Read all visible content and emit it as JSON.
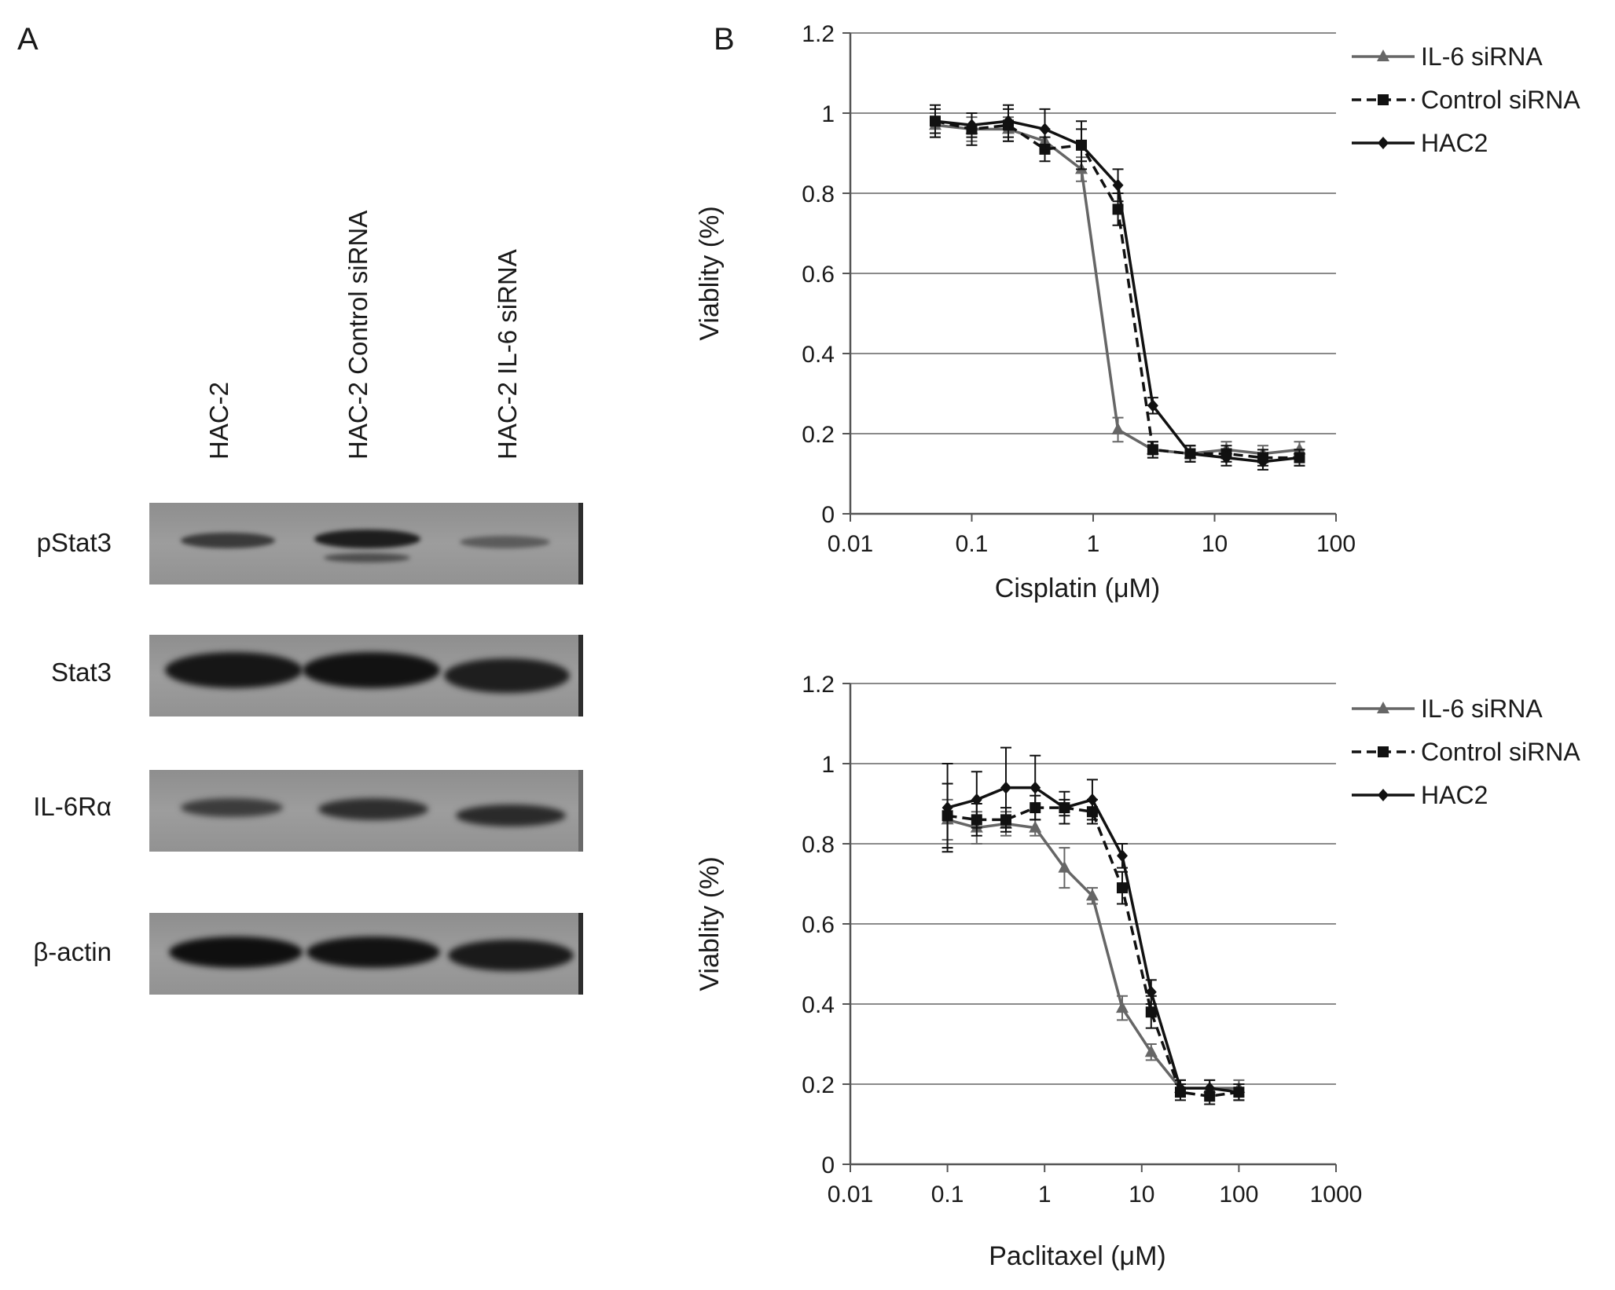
{
  "panels": {
    "a_label": "A",
    "b_label": "B"
  },
  "western_blot": {
    "lanes": [
      "HAC-2",
      "HAC-2 Control siRNA",
      "HAC-2 IL-6 siRNA"
    ],
    "rows": [
      {
        "label": "pStat3"
      },
      {
        "label": "Stat3"
      },
      {
        "label": "IL-6Rα"
      },
      {
        "label": "β-actin"
      }
    ]
  },
  "chart_data": [
    {
      "type": "line",
      "xlabel": "Cisplatin (μM)",
      "ylabel": "Viablity (%)",
      "x_scale": "log",
      "xlim": [
        0.01,
        100
      ],
      "ylim": [
        0,
        1.2
      ],
      "x_ticks": [
        "0.01",
        "0.1",
        "1",
        "10",
        "100"
      ],
      "y_ticks": [
        "0",
        "0.2",
        "0.4",
        "0.6",
        "0.8",
        "1",
        "1.2"
      ],
      "grid": "horizontal",
      "legend_position": "top-right",
      "x": [
        0.05,
        0.1,
        0.2,
        0.4,
        0.8,
        1.6,
        3.1,
        6.3,
        12.5,
        25,
        50
      ],
      "series": [
        {
          "name": "IL-6 siRNA",
          "marker": "triangle",
          "color": "#666666",
          "dash": "solid",
          "values": [
            0.97,
            0.96,
            0.96,
            0.93,
            0.86,
            0.21,
            0.16,
            0.15,
            0.16,
            0.15,
            0.16
          ],
          "errors": [
            0.03,
            0.03,
            0.03,
            0.03,
            0.03,
            0.03,
            0.02,
            0.02,
            0.02,
            0.02,
            0.02
          ]
        },
        {
          "name": "Control siRNA",
          "marker": "square",
          "color": "#111111",
          "dash": "dashed",
          "values": [
            0.98,
            0.96,
            0.97,
            0.91,
            0.92,
            0.76,
            0.16,
            0.15,
            0.15,
            0.14,
            0.14
          ],
          "errors": [
            0.03,
            0.04,
            0.04,
            0.03,
            0.04,
            0.04,
            0.02,
            0.02,
            0.02,
            0.02,
            0.02
          ]
        },
        {
          "name": "HAC2",
          "marker": "diamond",
          "color": "#111111",
          "dash": "solid",
          "values": [
            0.98,
            0.97,
            0.98,
            0.96,
            0.92,
            0.82,
            0.27,
            0.15,
            0.14,
            0.13,
            0.14
          ],
          "errors": [
            0.04,
            0.03,
            0.04,
            0.05,
            0.06,
            0.04,
            0.02,
            0.02,
            0.02,
            0.02,
            0.02
          ]
        }
      ]
    },
    {
      "type": "line",
      "xlabel": "Paclitaxel (μM)",
      "ylabel": "Viablity (%)",
      "x_scale": "log",
      "xlim": [
        0.01,
        1000
      ],
      "ylim": [
        0,
        1.2
      ],
      "x_ticks": [
        "0.01",
        "0.1",
        "1",
        "10",
        "100",
        "1000"
      ],
      "y_ticks": [
        "0",
        "0.2",
        "0.4",
        "0.6",
        "0.8",
        "1",
        "1.2"
      ],
      "grid": "horizontal",
      "legend_position": "top-right",
      "x": [
        0.1,
        0.2,
        0.4,
        0.8,
        1.6,
        3.1,
        6.3,
        12.5,
        25,
        50,
        100
      ],
      "series": [
        {
          "name": "IL-6 siRNA",
          "marker": "triangle",
          "color": "#666666",
          "dash": "solid",
          "values": [
            0.86,
            0.84,
            0.85,
            0.84,
            0.74,
            0.67,
            0.39,
            0.28,
            0.19,
            0.19,
            0.19
          ],
          "errors": [
            0.05,
            0.04,
            0.03,
            0.02,
            0.05,
            0.02,
            0.03,
            0.02,
            0.02,
            0.02,
            0.02
          ]
        },
        {
          "name": "Control siRNA",
          "marker": "square",
          "color": "#111111",
          "dash": "dashed",
          "values": [
            0.87,
            0.86,
            0.86,
            0.89,
            0.89,
            0.88,
            0.69,
            0.38,
            0.18,
            0.17,
            0.18
          ],
          "errors": [
            0.08,
            0.04,
            0.03,
            0.03,
            0.02,
            0.03,
            0.04,
            0.04,
            0.02,
            0.02,
            0.02
          ]
        },
        {
          "name": "HAC2",
          "marker": "diamond",
          "color": "#111111",
          "dash": "solid",
          "values": [
            0.89,
            0.91,
            0.94,
            0.94,
            0.89,
            0.91,
            0.77,
            0.43,
            0.19,
            0.19,
            0.18
          ],
          "errors": [
            0.11,
            0.07,
            0.1,
            0.08,
            0.04,
            0.05,
            0.03,
            0.03,
            0.02,
            0.02,
            0.02
          ]
        }
      ]
    }
  ]
}
